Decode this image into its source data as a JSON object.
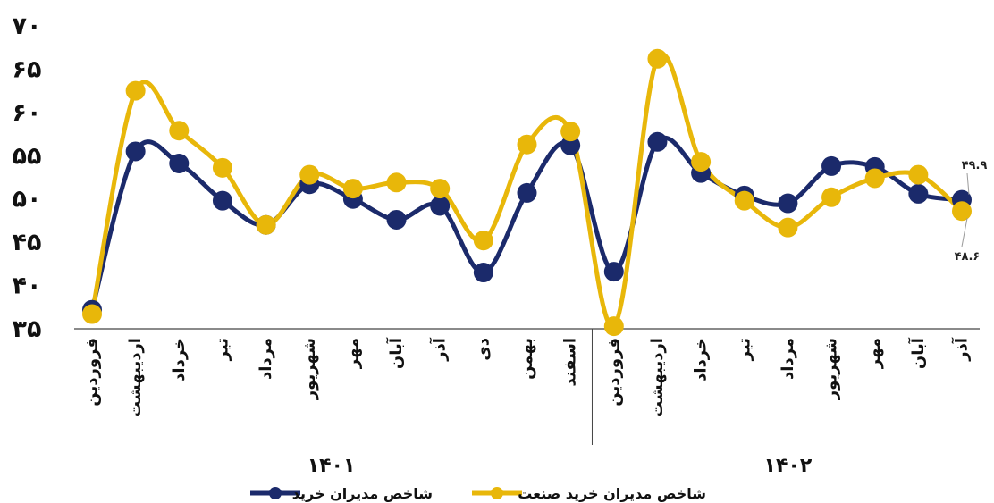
{
  "colors": {
    "series_a": "#1b2a6b",
    "series_b": "#e8b70a",
    "axis": "#444444"
  },
  "legend": {
    "series_a": "شاخص مدیران خرید",
    "series_b": "شاخص مدیران خرید صنعت"
  },
  "data_labels": {
    "last_a": "۴۹.۹",
    "last_b": "۴۸.۶"
  },
  "chart_data": {
    "type": "line",
    "smooth": true,
    "markers": "circle",
    "ylim": [
      35,
      70
    ],
    "yticks": [
      35,
      40,
      45,
      50,
      55,
      60,
      65,
      70
    ],
    "ytick_labels": [
      "۳۵",
      "۴۰",
      "۴۵",
      "۵۰",
      "۵۵",
      "۶۰",
      "۶۵",
      "۷۰"
    ],
    "legend_position": "bottom",
    "grid": false,
    "categories": [
      "فروردین",
      "اردیبهشت",
      "خرداد",
      "تیر",
      "مرداد",
      "شهریور",
      "مهر",
      "آبان",
      "آذر",
      "دی",
      "بهمن",
      "اسفند",
      "فروردین",
      "اردیبهشت",
      "خرداد",
      "تیر",
      "مرداد",
      "شهریور",
      "مهر",
      "آبان",
      "آذر"
    ],
    "groups": [
      {
        "label": "۱۴۰۱",
        "count": 12
      },
      {
        "label": "۱۴۰۲",
        "count": 9
      }
    ],
    "series": [
      {
        "name": "شاخص مدیران خرید",
        "color": "#1b2a6b",
        "values": [
          37.2,
          55.5,
          54.1,
          49.8,
          47.0,
          51.7,
          50.0,
          47.6,
          49.2,
          41.5,
          50.7,
          56.2,
          41.6,
          56.6,
          53.0,
          50.4,
          49.5,
          53.8,
          53.7,
          50.6,
          49.9
        ]
      },
      {
        "name": "شاخص مدیران خرید صنعت",
        "color": "#e8b70a",
        "values": [
          36.7,
          62.5,
          57.9,
          53.6,
          47.0,
          52.8,
          51.2,
          51.9,
          51.2,
          45.2,
          56.3,
          57.8,
          35.3,
          66.2,
          54.3,
          49.8,
          46.7,
          50.2,
          52.4,
          52.8,
          48.6
        ]
      }
    ]
  }
}
